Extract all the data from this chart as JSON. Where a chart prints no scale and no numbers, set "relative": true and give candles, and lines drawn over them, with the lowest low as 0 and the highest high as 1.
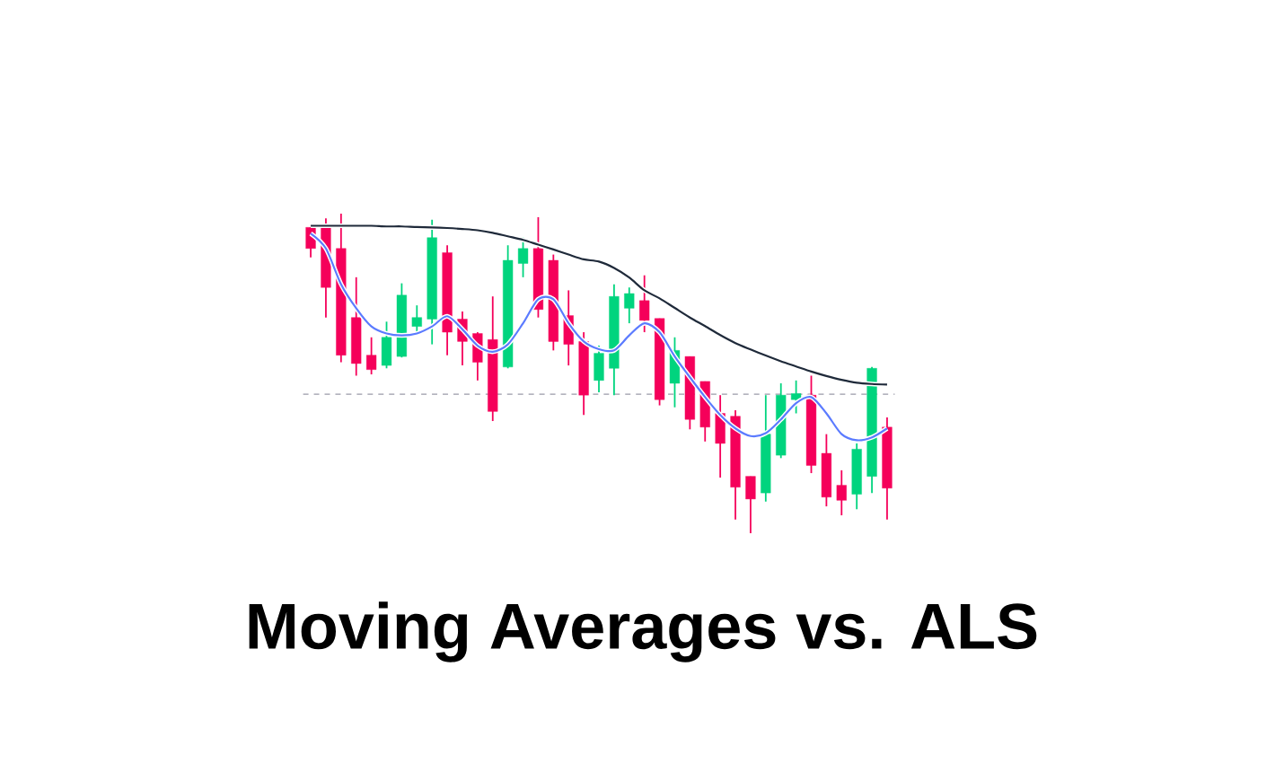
{
  "chart_data": {
    "type": "candlestick",
    "title": "Moving Averages vs. ALS",
    "relative": true,
    "categories": [
      null,
      null,
      null,
      null,
      null,
      null,
      null,
      null,
      null,
      null,
      null,
      null,
      null,
      null,
      null,
      null,
      null,
      null,
      null,
      null,
      null,
      null,
      null,
      null,
      null,
      null,
      null,
      null,
      null,
      null,
      null,
      null,
      null,
      null,
      null,
      null,
      null,
      null,
      null
    ],
    "ohlc": [
      [
        0.957,
        0.957,
        0.863,
        0.891
      ],
      [
        0.957,
        0.985,
        0.675,
        0.769
      ],
      [
        0.891,
        1.0,
        0.535,
        0.557
      ],
      [
        0.675,
        0.801,
        0.493,
        0.531
      ],
      [
        0.557,
        0.613,
        0.497,
        0.512
      ],
      [
        0.525,
        0.662,
        0.516,
        0.613
      ],
      [
        0.553,
        0.782,
        0.55,
        0.745
      ],
      [
        0.647,
        0.713,
        0.629,
        0.675
      ],
      [
        0.67,
        0.981,
        0.591,
        0.925
      ],
      [
        0.878,
        0.901,
        0.557,
        0.629
      ],
      [
        0.67,
        0.694,
        0.525,
        0.6
      ],
      [
        0.625,
        0.629,
        0.478,
        0.535
      ],
      [
        0.606,
        0.741,
        0.351,
        0.381
      ],
      [
        0.52,
        0.901,
        0.516,
        0.854
      ],
      [
        0.844,
        0.925,
        0.801,
        0.891
      ],
      [
        0.891,
        0.989,
        0.675,
        0.7
      ],
      [
        0.854,
        0.872,
        0.572,
        0.6
      ],
      [
        0.681,
        0.76,
        0.525,
        0.591
      ],
      [
        0.6,
        0.629,
        0.37,
        0.432
      ],
      [
        0.478,
        0.587,
        0.441,
        0.563
      ],
      [
        0.516,
        0.779,
        0.432,
        0.741
      ],
      [
        0.704,
        0.769,
        0.657,
        0.75
      ],
      [
        0.728,
        0.807,
        0.629,
        0.666
      ],
      [
        0.672,
        0.672,
        0.4,
        0.418
      ],
      [
        0.469,
        0.613,
        0.394,
        0.572
      ],
      [
        0.553,
        0.553,
        0.325,
        0.356
      ],
      [
        0.475,
        0.475,
        0.287,
        0.332
      ],
      [
        0.375,
        0.432,
        0.174,
        0.281
      ],
      [
        0.366,
        0.385,
        0.043,
        0.144
      ],
      [
        0.178,
        0.178,
        0.0,
        0.107
      ],
      [
        0.126,
        0.432,
        0.099,
        0.31
      ],
      [
        0.244,
        0.469,
        0.235,
        0.432
      ],
      [
        0.418,
        0.478,
        0.375,
        0.437
      ],
      [
        0.432,
        0.493,
        0.188,
        0.212
      ],
      [
        0.25,
        0.31,
        0.084,
        0.113
      ],
      [
        0.15,
        0.197,
        0.056,
        0.103
      ],
      [
        0.122,
        0.281,
        0.075,
        0.263
      ],
      [
        0.178,
        0.52,
        0.126,
        0.516
      ],
      [
        0.332,
        0.362,
        0.043,
        0.141
      ]
    ],
    "colors": [
      "#f5005a",
      "#f5005a",
      "#f5005a",
      "#f5005a",
      "#f5005a",
      "#00d47e",
      "#00d47e",
      "#00d47e",
      "#00d47e",
      "#f5005a",
      "#f5005a",
      "#f5005a",
      "#f5005a",
      "#00d47e",
      "#00d47e",
      "#f5005a",
      "#f5005a",
      "#f5005a",
      "#f5005a",
      "#00d47e",
      "#00d47e",
      "#00d47e",
      "#f5005a",
      "#f5005a",
      "#00d47e",
      "#f5005a",
      "#f5005a",
      "#f5005a",
      "#f5005a",
      "#f5005a",
      "#00d47e",
      "#00d47e",
      "#00d47e",
      "#f5005a",
      "#f5005a",
      "#f5005a",
      "#00d47e",
      "#00d47e",
      "#f5005a"
    ],
    "series": [
      {
        "type": "line",
        "color": "#1f2a3a",
        "values": [
          0.962,
          0.962,
          0.962,
          0.962,
          0.962,
          0.96,
          0.96,
          0.958,
          0.957,
          0.955,
          0.952,
          0.948,
          0.94,
          0.929,
          0.918,
          0.903,
          0.888,
          0.872,
          0.857,
          0.85,
          0.83,
          0.8,
          0.76,
          0.735,
          0.705,
          0.675,
          0.648,
          0.62,
          0.595,
          0.575,
          0.556,
          0.538,
          0.522,
          0.506,
          0.492,
          0.48,
          0.471,
          0.467,
          0.465
        ]
      },
      {
        "type": "line",
        "color": "#5b7bff",
        "values": [
          0.938,
          0.891,
          0.779,
          0.704,
          0.647,
          0.625,
          0.619,
          0.625,
          0.647,
          0.679,
          0.638,
          0.587,
          0.568,
          0.591,
          0.657,
          0.732,
          0.732,
          0.657,
          0.6,
          0.576,
          0.572,
          0.619,
          0.657,
          0.629,
          0.553,
          0.488,
          0.426,
          0.37,
          0.328,
          0.304,
          0.313,
          0.356,
          0.407,
          0.426,
          0.375,
          0.31,
          0.291,
          0.3,
          0.328
        ]
      }
    ],
    "ref_lines": [
      {
        "axis": "y",
        "value": 0.435,
        "color": "#9a9aa8",
        "line_style": "dashed"
      }
    ]
  }
}
